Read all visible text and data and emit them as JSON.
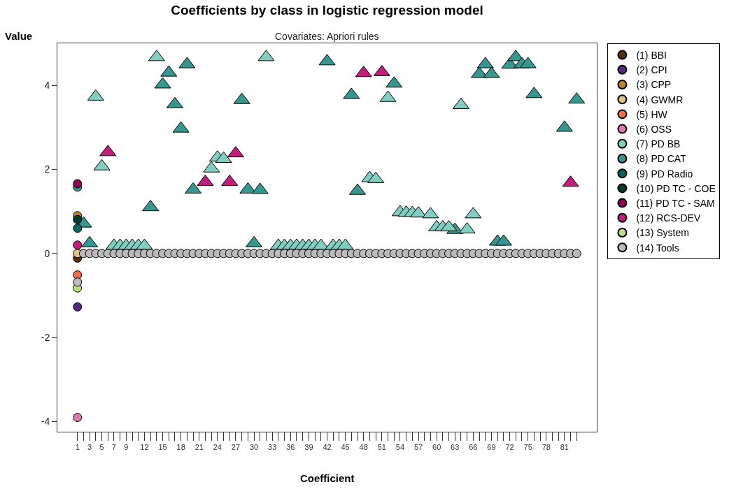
{
  "chart_data": {
    "type": "scatter",
    "title": "Coefficients by class in logistic regression model",
    "subtitle": "Covariates: Apriori rules",
    "xlabel": "Coefficient",
    "ylabel": "Value",
    "xlim": [
      -2.3,
      86.3
    ],
    "ylim": [
      -4.24,
      5.0
    ],
    "yticks": [
      -4,
      -2,
      0,
      2,
      4
    ],
    "xticks": [
      1,
      {
        "value": 2,
        "label": null
      },
      3,
      {
        "value": 4,
        "label": null
      },
      5,
      {
        "value": 6,
        "label": null
      },
      7,
      {
        "value": 8,
        "label": null
      },
      9,
      {
        "value": 10,
        "label": null
      },
      {
        "value": 11,
        "label": null
      },
      12,
      {
        "value": 13,
        "label": null
      },
      {
        "value": 14,
        "label": null
      },
      15,
      {
        "value": 16,
        "label": null
      },
      {
        "value": 17,
        "label": null
      },
      18,
      {
        "value": 19,
        "label": null
      },
      {
        "value": 20,
        "label": null
      },
      21,
      {
        "value": 22,
        "label": null
      },
      {
        "value": 23,
        "label": null
      },
      24,
      {
        "value": 25,
        "label": null
      },
      {
        "value": 26,
        "label": null
      },
      27,
      {
        "value": 28,
        "label": null
      },
      {
        "value": 29,
        "label": null
      },
      30,
      {
        "value": 31,
        "label": null
      },
      {
        "value": 32,
        "label": null
      },
      33,
      {
        "value": 34,
        "label": null
      },
      {
        "value": 35,
        "label": null
      },
      36,
      {
        "value": 37,
        "label": null
      },
      {
        "value": 38,
        "label": null
      },
      39,
      {
        "value": 40,
        "label": null
      },
      {
        "value": 41,
        "label": null
      },
      42,
      {
        "value": 43,
        "label": null
      },
      {
        "value": 44,
        "label": null
      },
      45,
      {
        "value": 46,
        "label": null
      },
      {
        "value": 47,
        "label": null
      },
      48,
      {
        "value": 49,
        "label": null
      },
      {
        "value": 50,
        "label": null
      },
      51,
      {
        "value": 52,
        "label": null
      },
      {
        "value": 53,
        "label": null
      },
      54,
      {
        "value": 55,
        "label": null
      },
      {
        "value": 56,
        "label": null
      },
      57,
      {
        "value": 58,
        "label": null
      },
      {
        "value": 59,
        "label": null
      },
      60,
      {
        "value": 61,
        "label": null
      },
      {
        "value": 62,
        "label": null
      },
      63,
      {
        "value": 64,
        "label": null
      },
      {
        "value": 65,
        "label": null
      },
      66,
      {
        "value": 67,
        "label": null
      },
      {
        "value": 68,
        "label": null
      },
      69,
      {
        "value": 70,
        "label": null
      },
      {
        "value": 71,
        "label": null
      },
      72,
      {
        "value": 73,
        "label": null
      },
      {
        "value": 74,
        "label": null
      },
      75,
      {
        "value": 76,
        "label": null
      },
      {
        "value": 77,
        "label": null
      },
      78,
      {
        "value": 79,
        "label": null
      },
      {
        "value": 80,
        "label": null
      },
      81,
      {
        "value": 82,
        "label": null
      },
      {
        "value": 83,
        "label": null
      }
    ],
    "legend": "right",
    "marker": "circle",
    "series": [
      {
        "color": "#35978f",
        "marker": "triangle",
        "x": [
          2,
          3,
          13,
          15,
          16,
          17,
          18,
          19,
          20,
          28,
          29,
          30,
          31,
          42,
          46,
          47,
          53,
          63,
          67,
          68,
          69,
          70,
          71,
          72,
          73,
          74,
          75,
          76,
          81,
          83
        ],
        "values": [
          0.71,
          0.24,
          1.1,
          4.02,
          4.3,
          3.55,
          2.97,
          4.5,
          1.52,
          3.65,
          1.52,
          0.24,
          1.51,
          4.57,
          3.77,
          1.49,
          4.04,
          0.56,
          4.27,
          4.5,
          4.27,
          0.28,
          0.28,
          4.49,
          4.67,
          4.5,
          4.5,
          3.79,
          2.99,
          3.66
        ]
      },
      {
        "color": "#80cdc1",
        "marker": "triangle",
        "x": [
          4,
          5,
          7,
          8,
          9,
          10,
          11,
          12,
          14,
          23,
          24,
          25,
          32,
          34,
          35,
          36,
          37,
          38,
          39,
          40,
          41,
          43,
          44,
          45,
          49,
          50,
          52,
          54,
          55,
          56,
          57,
          59,
          60,
          61,
          62,
          64,
          65,
          66
        ],
        "values": [
          3.73,
          2.07,
          0.18,
          0.18,
          0.18,
          0.18,
          0.18,
          0.18,
          4.67,
          2.02,
          2.28,
          2.25,
          4.67,
          0.18,
          0.18,
          0.18,
          0.18,
          0.18,
          0.18,
          0.18,
          0.18,
          0.18,
          0.18,
          0.18,
          1.79,
          1.77,
          3.7,
          0.98,
          0.97,
          0.96,
          0.95,
          0.93,
          0.62,
          0.62,
          0.62,
          3.53,
          0.57,
          0.93
        ]
      },
      {
        "color": "#c51b7d",
        "marker": "triangle",
        "x": [
          6,
          22,
          26,
          27,
          48,
          51,
          82
        ],
        "values": [
          2.41,
          1.7,
          1.7,
          2.38,
          4.29,
          4.31,
          1.68
        ]
      },
      {
        "name": "(1) BBI",
        "color": "#543005",
        "x": [
          1
        ],
        "values": [
          -0.11
        ]
      },
      {
        "name": "(2) CPI",
        "color": "#542788",
        "x": [
          1
        ],
        "values": [
          -1.27
        ]
      },
      {
        "name": "(3) CPP",
        "color": "#bf812d",
        "x": [
          1
        ],
        "values": [
          0.9
        ]
      },
      {
        "name": "(4) GWMR",
        "color": "#dfc27d",
        "x": [
          1
        ],
        "values": [
          0.0
        ]
      },
      {
        "name": "(5) HW",
        "color": "#f46d43",
        "x": [
          1
        ],
        "values": [
          -0.51
        ]
      },
      {
        "name": "(6) OSS",
        "color": "#de77ae",
        "x": [
          1
        ],
        "values": [
          -3.9
        ]
      },
      {
        "name": "(7) PD BB",
        "color": "#80cdc1"
      },
      {
        "name": "(8) PD CAT",
        "color": "#35978f",
        "x": [
          1
        ],
        "values": [
          1.58
        ]
      },
      {
        "name": "(9) PD Radio",
        "color": "#01665e",
        "x": [
          1
        ],
        "values": [
          0.6
        ]
      },
      {
        "name": "(10) PD TC - COE",
        "color": "#003c30",
        "x": [
          1
        ],
        "values": [
          0.81
        ]
      },
      {
        "name": "(11) PD TC - SAM",
        "color": "#8e0152",
        "x": [
          1
        ],
        "values": [
          1.66
        ]
      },
      {
        "name": "(12) RCS-DEV",
        "color": "#c51b7d",
        "x": [
          1
        ],
        "values": [
          0.2
        ]
      },
      {
        "name": "(13) System",
        "color": "#b8e186",
        "x": [
          1
        ],
        "values": [
          -0.82
        ]
      },
      {
        "name": "(14) Tools",
        "color": "#bababa",
        "x": [
          1,
          2,
          3,
          4,
          5,
          6,
          7,
          8,
          9,
          10,
          11,
          12,
          13,
          14,
          15,
          16,
          17,
          18,
          19,
          20,
          21,
          22,
          23,
          24,
          25,
          26,
          27,
          28,
          29,
          30,
          31,
          32,
          33,
          34,
          35,
          36,
          37,
          38,
          39,
          40,
          41,
          42,
          43,
          44,
          45,
          46,
          47,
          48,
          49,
          50,
          51,
          52,
          53,
          54,
          55,
          56,
          57,
          58,
          59,
          60,
          61,
          62,
          63,
          64,
          65,
          66,
          67,
          68,
          69,
          70,
          71,
          72,
          73,
          74,
          75,
          76,
          77,
          78,
          79,
          80,
          81,
          82,
          83
        ],
        "values": [
          -0.68,
          0,
          0,
          0,
          0,
          0,
          0,
          0,
          0,
          0,
          0,
          0,
          0,
          0,
          0,
          0,
          0,
          0,
          0,
          0,
          0,
          0,
          0,
          0,
          0,
          0,
          0,
          0,
          0,
          0,
          0,
          0,
          0,
          0,
          0,
          0,
          0,
          0,
          0,
          0,
          0,
          0,
          0,
          0,
          0,
          0,
          0,
          0,
          0,
          0,
          0,
          0,
          0,
          0,
          0,
          0,
          0,
          0,
          0,
          0,
          0,
          0,
          0,
          0,
          0,
          0,
          0,
          0,
          0,
          0,
          0,
          0,
          0,
          0,
          0,
          0,
          0,
          0,
          0,
          0,
          0,
          0,
          0
        ]
      }
    ]
  }
}
